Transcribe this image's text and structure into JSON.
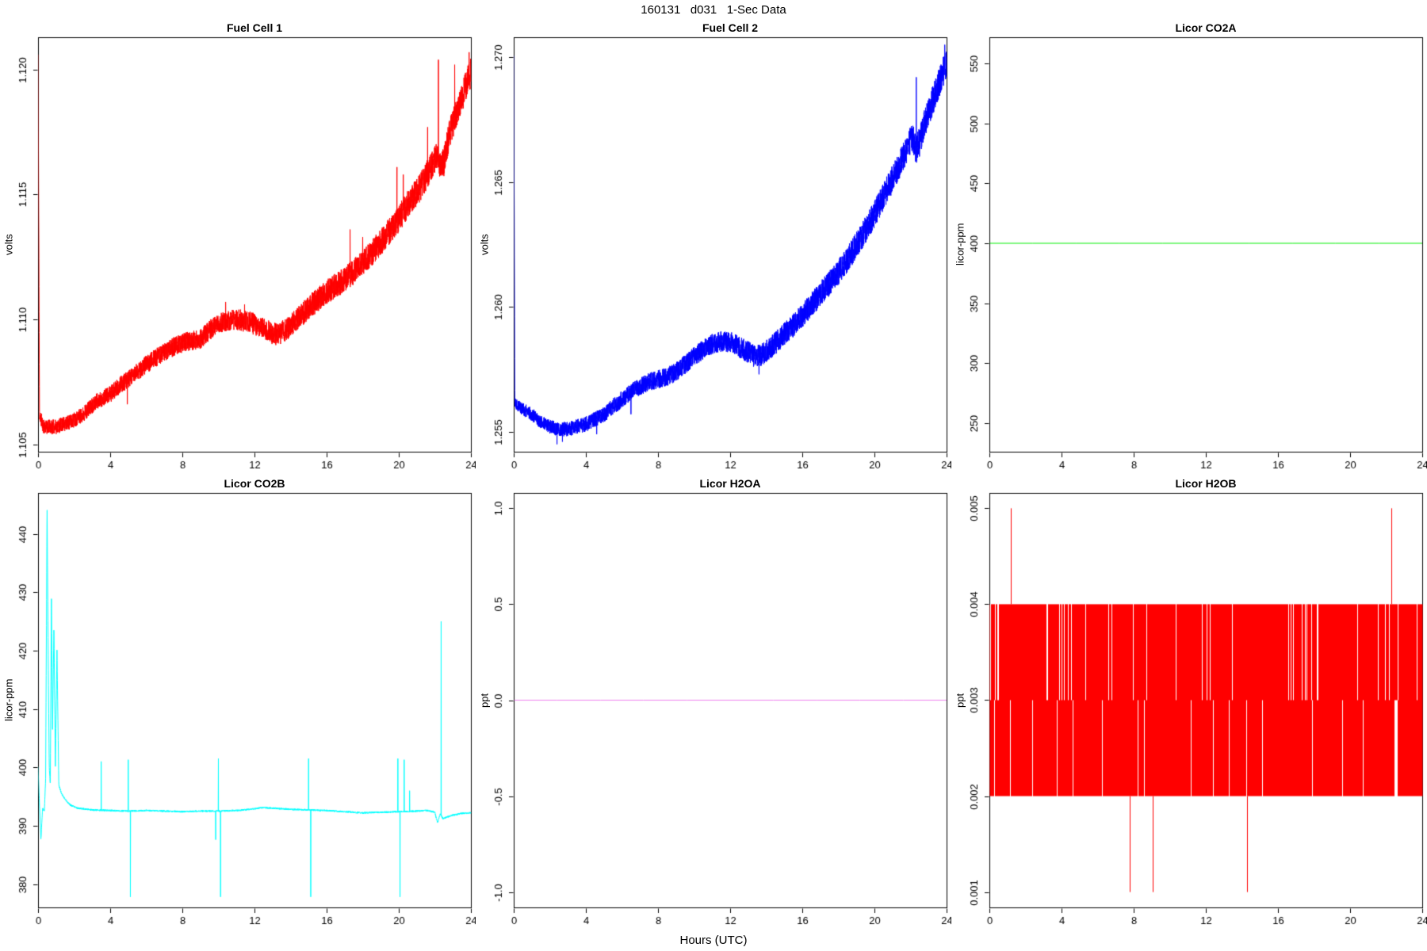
{
  "page": {
    "title": "160131   d031   1-Sec Data",
    "xlabel": "Hours (UTC)",
    "background": "#FFFFFF",
    "axis_color": "#000000"
  },
  "chart_data": [
    {
      "id": "fuel-cell-1",
      "type": "line",
      "title": "Fuel Cell 1",
      "ylabel": "volts",
      "color": "#FF0000",
      "seed": 11,
      "n": 4200,
      "xlim": [
        0,
        24
      ],
      "xticks": [
        0,
        4,
        8,
        12,
        16,
        20,
        24
      ],
      "xtick_labels": [
        "0",
        "4",
        "8",
        "12",
        "16",
        "20",
        "24"
      ],
      "ylim": [
        1.1047,
        1.1213
      ],
      "yticks": [
        1.105,
        1.11,
        1.115,
        1.12
      ],
      "ytick_labels": [
        "1.105",
        "1.110",
        "1.115",
        "1.120"
      ],
      "noise": [
        0.00028,
        0.0006
      ],
      "base": [
        [
          0,
          1.1206
        ],
        [
          0.08,
          1.1062
        ],
        [
          0.3,
          1.1057
        ],
        [
          1,
          1.1057
        ],
        [
          1.8,
          1.1059
        ],
        [
          2.5,
          1.1062
        ],
        [
          3.2,
          1.1067
        ],
        [
          4,
          1.107
        ],
        [
          4.6,
          1.1074
        ],
        [
          5.2,
          1.1077
        ],
        [
          6,
          1.1082
        ],
        [
          6.8,
          1.1086
        ],
        [
          7.5,
          1.1089
        ],
        [
          8.2,
          1.1091
        ],
        [
          9,
          1.1092
        ],
        [
          9.7,
          1.1097
        ],
        [
          10.3,
          1.1099
        ],
        [
          11,
          1.11
        ],
        [
          11.7,
          1.1099
        ],
        [
          12.3,
          1.1097
        ],
        [
          12.8,
          1.1095
        ],
        [
          13.3,
          1.1094
        ],
        [
          13.8,
          1.1096
        ],
        [
          14.5,
          1.1101
        ],
        [
          15.2,
          1.1106
        ],
        [
          16,
          1.1111
        ],
        [
          16.8,
          1.1115
        ],
        [
          17.5,
          1.1119
        ],
        [
          18.2,
          1.1124
        ],
        [
          19,
          1.1131
        ],
        [
          19.8,
          1.1138
        ],
        [
          20.5,
          1.1146
        ],
        [
          21.2,
          1.1153
        ],
        [
          21.8,
          1.1161
        ],
        [
          22.1,
          1.1166
        ],
        [
          22.3,
          1.1161
        ],
        [
          22.5,
          1.1163
        ],
        [
          22.8,
          1.1174
        ],
        [
          23.2,
          1.1183
        ],
        [
          23.6,
          1.1191
        ],
        [
          24,
          1.1199
        ]
      ],
      "spikes": [
        [
          4.95,
          1.1066
        ],
        [
          10.4,
          1.1107
        ],
        [
          11.45,
          1.1106
        ],
        [
          17.3,
          1.1136
        ],
        [
          18.0,
          1.1133
        ],
        [
          19.9,
          1.1161
        ],
        [
          20.25,
          1.1158
        ],
        [
          21.6,
          1.1177
        ],
        [
          22.2,
          1.1204
        ],
        [
          23.1,
          1.1202
        ],
        [
          23.9,
          1.1207
        ]
      ]
    },
    {
      "id": "fuel-cell-2",
      "type": "line",
      "title": "Fuel Cell 2",
      "ylabel": "volts",
      "color": "#0000FF",
      "seed": 22,
      "n": 4200,
      "xlim": [
        0,
        24
      ],
      "xticks": [
        0,
        4,
        8,
        12,
        16,
        20,
        24
      ],
      "xtick_labels": [
        "0",
        "4",
        "8",
        "12",
        "16",
        "20",
        "24"
      ],
      "ylim": [
        1.2542,
        1.2708
      ],
      "yticks": [
        1.255,
        1.26,
        1.265,
        1.27
      ],
      "ytick_labels": [
        "1.255",
        "1.260",
        "1.265",
        "1.270"
      ],
      "noise": [
        0.00025,
        0.0006
      ],
      "base": [
        [
          0,
          1.27
        ],
        [
          0.06,
          1.2562
        ],
        [
          0.5,
          1.2559
        ],
        [
          1,
          1.2557
        ],
        [
          1.5,
          1.2554
        ],
        [
          2,
          1.2552
        ],
        [
          2.5,
          1.2551
        ],
        [
          3,
          1.2551
        ],
        [
          3.5,
          1.2552
        ],
        [
          4,
          1.2553
        ],
        [
          4.5,
          1.2555
        ],
        [
          5,
          1.2557
        ],
        [
          5.5,
          1.256
        ],
        [
          6,
          1.2563
        ],
        [
          6.5,
          1.2566
        ],
        [
          7,
          1.2568
        ],
        [
          7.5,
          1.257
        ],
        [
          8,
          1.2571
        ],
        [
          8.5,
          1.2572
        ],
        [
          9,
          1.2574
        ],
        [
          9.5,
          1.2577
        ],
        [
          10,
          1.258
        ],
        [
          10.5,
          1.2583
        ],
        [
          11,
          1.2585
        ],
        [
          11.5,
          1.2586
        ],
        [
          12,
          1.2586
        ],
        [
          12.5,
          1.2584
        ],
        [
          13,
          1.2582
        ],
        [
          13.4,
          1.258
        ],
        [
          13.8,
          1.2581
        ],
        [
          14.3,
          1.2584
        ],
        [
          15,
          1.2589
        ],
        [
          15.7,
          1.2594
        ],
        [
          16.4,
          1.26
        ],
        [
          17.1,
          1.2606
        ],
        [
          17.8,
          1.2612
        ],
        [
          18.5,
          1.2619
        ],
        [
          19.2,
          1.2627
        ],
        [
          20,
          1.2637
        ],
        [
          20.7,
          1.2647
        ],
        [
          21.4,
          1.2657
        ],
        [
          21.9,
          1.2665
        ],
        [
          22.1,
          1.2668
        ],
        [
          22.3,
          1.2663
        ],
        [
          22.5,
          1.2666
        ],
        [
          22.8,
          1.2674
        ],
        [
          23.2,
          1.2682
        ],
        [
          23.6,
          1.269
        ],
        [
          24,
          1.2698
        ]
      ],
      "spikes": [
        [
          2.4,
          1.2545
        ],
        [
          2.7,
          1.2546
        ],
        [
          4.6,
          1.2549
        ],
        [
          6.5,
          1.2557
        ],
        [
          13.6,
          1.2573
        ],
        [
          22.32,
          1.2692
        ],
        [
          23.9,
          1.2705
        ]
      ]
    },
    {
      "id": "licor-co2a",
      "type": "line",
      "title": "Licor CO2A",
      "ylabel": "licor-ppm",
      "color": "#00EE00",
      "seed": 33,
      "n": 10,
      "xlim": [
        0,
        24
      ],
      "xticks": [
        0,
        4,
        8,
        12,
        16,
        20,
        24
      ],
      "xtick_labels": [
        "0",
        "4",
        "8",
        "12",
        "16",
        "20",
        "24"
      ],
      "ylim": [
        226,
        572
      ],
      "yticks": [
        250,
        300,
        350,
        400,
        450,
        500,
        550
      ],
      "ytick_labels": [
        "250",
        "300",
        "350",
        "400",
        "450",
        "500",
        "550"
      ],
      "noise": 0,
      "base": [
        [
          0,
          400
        ],
        [
          24,
          400
        ]
      ],
      "spikes": []
    },
    {
      "id": "licor-co2b",
      "type": "line",
      "title": "Licor CO2B",
      "ylabel": "licor-ppm",
      "color": "#00FFFF",
      "seed": 44,
      "n": 3200,
      "xlim": [
        0,
        24
      ],
      "xticks": [
        0,
        4,
        8,
        12,
        16,
        20,
        24
      ],
      "xtick_labels": [
        "0",
        "4",
        "8",
        "12",
        "16",
        "20",
        "24"
      ],
      "ylim": [
        376,
        447
      ],
      "yticks": [
        380,
        390,
        400,
        410,
        420,
        430,
        440
      ],
      "ytick_labels": [
        "380",
        "390",
        "400",
        "410",
        "420",
        "430",
        "440"
      ],
      "noise": 0.15,
      "base": [
        [
          0,
          400
        ],
        [
          0.1,
          392
        ],
        [
          0.16,
          387.6
        ],
        [
          0.25,
          393
        ],
        [
          0.35,
          392.5
        ],
        [
          0.42,
          398
        ],
        [
          0.5,
          445
        ],
        [
          0.56,
          420
        ],
        [
          0.62,
          400
        ],
        [
          0.68,
          397
        ],
        [
          0.74,
          430
        ],
        [
          0.8,
          406
        ],
        [
          0.88,
          424
        ],
        [
          0.96,
          400
        ],
        [
          1.05,
          420
        ],
        [
          1.15,
          397
        ],
        [
          1.3,
          395.5
        ],
        [
          1.5,
          394.5
        ],
        [
          1.8,
          393.5
        ],
        [
          2.2,
          393
        ],
        [
          3,
          392.7
        ],
        [
          4,
          392.6
        ],
        [
          5,
          392.5
        ],
        [
          6,
          392.6
        ],
        [
          7,
          392.5
        ],
        [
          8,
          392.4
        ],
        [
          9,
          392.5
        ],
        [
          10,
          392.5
        ],
        [
          11,
          392.6
        ],
        [
          12,
          392.9
        ],
        [
          12.5,
          393.1
        ],
        [
          13,
          393
        ],
        [
          14,
          392.8
        ],
        [
          15,
          392.7
        ],
        [
          16,
          392.6
        ],
        [
          17,
          392.4
        ],
        [
          18,
          392.2
        ],
        [
          19,
          392.3
        ],
        [
          20,
          392.4
        ],
        [
          21,
          392.5
        ],
        [
          21.6,
          392.6
        ],
        [
          22,
          392.3
        ],
        [
          22.15,
          390.5
        ],
        [
          22.3,
          392
        ],
        [
          22.45,
          391.2
        ],
        [
          22.7,
          391.5
        ],
        [
          23,
          391.8
        ],
        [
          23.5,
          392.1
        ],
        [
          24,
          392.2
        ]
      ],
      "spikes": [
        [
          3.5,
          401
        ],
        [
          5.0,
          401.3
        ],
        [
          5.12,
          377.8
        ],
        [
          9.85,
          387.6
        ],
        [
          10.0,
          401.5
        ],
        [
          10.12,
          377.8
        ],
        [
          15.0,
          401.5
        ],
        [
          15.12,
          377.8
        ],
        [
          19.95,
          401.5
        ],
        [
          20.07,
          377.8
        ],
        [
          20.3,
          401.3
        ],
        [
          20.6,
          396
        ],
        [
          22.35,
          425
        ]
      ]
    },
    {
      "id": "licor-h2oa",
      "type": "line",
      "title": "Licor H2OA",
      "ylabel": "ppt",
      "color": "#EE82EE",
      "seed": 55,
      "n": 10,
      "xlim": [
        0,
        24
      ],
      "xticks": [
        0,
        4,
        8,
        12,
        16,
        20,
        24
      ],
      "xtick_labels": [
        "0",
        "4",
        "8",
        "12",
        "16",
        "20",
        "24"
      ],
      "ylim": [
        -1.08,
        1.08
      ],
      "yticks": [
        -1.0,
        -0.5,
        0.0,
        0.5,
        1.0
      ],
      "ytick_labels": [
        "-1.0",
        "-0.5",
        "0.0",
        "0.5",
        "1.0"
      ],
      "noise": 0,
      "base": [
        [
          0,
          0
        ],
        [
          24,
          0
        ]
      ],
      "spikes": []
    },
    {
      "id": "licor-h2ob",
      "type": "band",
      "title": "Licor H2OB",
      "ylabel": "ppt",
      "color": "#FF0000",
      "seed": 66,
      "xlim": [
        0,
        24
      ],
      "xticks": [
        0,
        4,
        8,
        12,
        16,
        20,
        24
      ],
      "xtick_labels": [
        "0",
        "4",
        "8",
        "12",
        "16",
        "20",
        "24"
      ],
      "ylim": [
        0.00084,
        0.00516
      ],
      "yticks": [
        0.001,
        0.002,
        0.003,
        0.004,
        0.005
      ],
      "ytick_labels": [
        "0.001",
        "0.002",
        "0.003",
        "0.004",
        "0.005"
      ],
      "band": [
        0.002,
        0.004
      ],
      "band_mid": 0.003,
      "lower_only_prob": 0.045,
      "upper_only_prob": 0.02,
      "notches": [
        [
          22.42,
          22.6
        ]
      ],
      "spikes_up": [
        [
          1.2,
          0.005
        ],
        [
          22.3,
          0.005
        ]
      ],
      "spikes_down": [
        [
          7.8,
          0.001
        ],
        [
          9.05,
          0.001
        ],
        [
          14.3,
          0.001
        ]
      ]
    }
  ]
}
